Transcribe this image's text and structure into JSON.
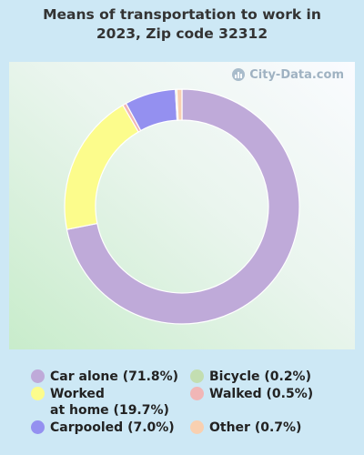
{
  "title_line1": "Means of transportation to work in",
  "title_line2": "2023, Zip code 32312",
  "watermark": "City-Data.com",
  "chart_data": {
    "type": "pie",
    "title": "Means of transportation to work in 2023, Zip code 32312",
    "slices": [
      {
        "label": "Car alone",
        "value": 71.8,
        "color": "#bfaad9"
      },
      {
        "label": "Worked at home",
        "value": 19.7,
        "color": "#fcfc8c"
      },
      {
        "label": "Walked",
        "value": 0.5,
        "color": "#f1b6b6"
      },
      {
        "label": "Carpooled",
        "value": 7.0,
        "color": "#9490f0"
      },
      {
        "label": "Bicycle",
        "value": 0.2,
        "color": "#c3deb1"
      },
      {
        "label": "Other",
        "value": 0.7,
        "color": "#f9d0b0"
      }
    ]
  },
  "legend": {
    "car_alone": "Car alone (71.8%)",
    "worked_line1": "Worked",
    "worked_line2": "at home (19.7%)",
    "carpooled": "Carpooled (7.0%)",
    "bicycle": "Bicycle (0.2%)",
    "walked": "Walked (0.5%)",
    "other": "Other (0.7%)"
  }
}
